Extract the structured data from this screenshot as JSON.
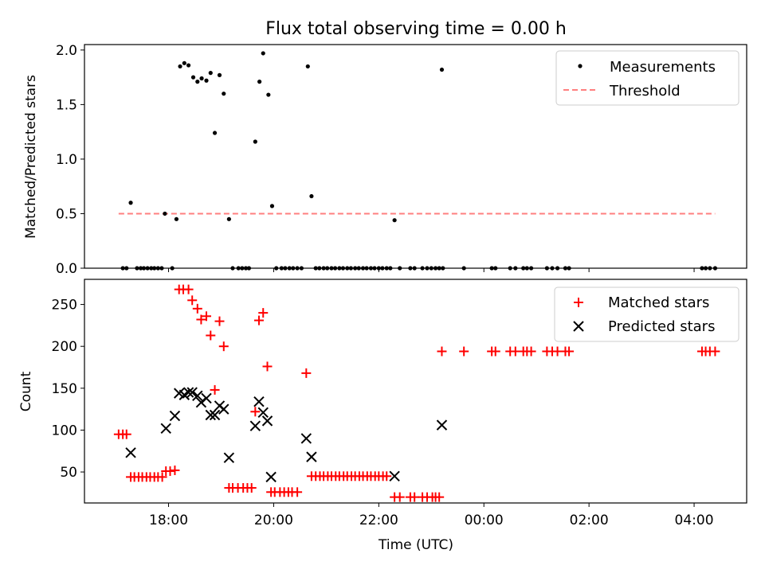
{
  "chart_data": [
    {
      "type": "scatter",
      "title": "Flux total observing time = 0.00 h",
      "xlabel": "",
      "ylabel": "Matched/Predicted stars",
      "xlim": [
        16.4,
        29.0
      ],
      "ylim": [
        0.0,
        2.05
      ],
      "xticks": [
        18,
        20,
        22,
        24,
        26,
        28
      ],
      "yticks": [
        {
          "v": 0.0,
          "label": "0.0"
        },
        {
          "v": 0.5,
          "label": "0.5"
        },
        {
          "v": 1.0,
          "label": "1.0"
        },
        {
          "v": 1.5,
          "label": "1.5"
        },
        {
          "v": 2.0,
          "label": "2.0"
        }
      ],
      "legend_position": "top-right",
      "series": [
        {
          "name": "Measurements",
          "kind": "dot",
          "color": "#000000",
          "points": [
            [
              17.13,
              0
            ],
            [
              17.2,
              0
            ],
            [
              17.28,
              0.6
            ],
            [
              17.4,
              0
            ],
            [
              17.47,
              0
            ],
            [
              17.53,
              0
            ],
            [
              17.6,
              0
            ],
            [
              17.67,
              0
            ],
            [
              17.73,
              0
            ],
            [
              17.8,
              0
            ],
            [
              17.87,
              0
            ],
            [
              17.93,
              0.5
            ],
            [
              18.07,
              0
            ],
            [
              18.15,
              0.45
            ],
            [
              18.22,
              1.85
            ],
            [
              18.3,
              1.88
            ],
            [
              18.38,
              1.86
            ],
            [
              18.47,
              1.75
            ],
            [
              18.55,
              1.71
            ],
            [
              18.63,
              1.74
            ],
            [
              18.72,
              1.72
            ],
            [
              18.8,
              1.79
            ],
            [
              18.88,
              1.24
            ],
            [
              18.97,
              1.77
            ],
            [
              19.05,
              1.6
            ],
            [
              19.15,
              0.45
            ],
            [
              19.22,
              0
            ],
            [
              19.33,
              0
            ],
            [
              19.4,
              0
            ],
            [
              19.47,
              0
            ],
            [
              19.53,
              0
            ],
            [
              19.65,
              1.16
            ],
            [
              19.73,
              1.71
            ],
            [
              19.8,
              1.97
            ],
            [
              19.9,
              1.59
            ],
            [
              19.97,
              0.57
            ],
            [
              20.05,
              0
            ],
            [
              20.15,
              0
            ],
            [
              20.22,
              0
            ],
            [
              20.3,
              0
            ],
            [
              20.37,
              0
            ],
            [
              20.45,
              0
            ],
            [
              20.53,
              0
            ],
            [
              20.65,
              1.85
            ],
            [
              20.72,
              0.66
            ],
            [
              20.8,
              0
            ],
            [
              20.87,
              0
            ],
            [
              20.95,
              0
            ],
            [
              21.02,
              0
            ],
            [
              21.1,
              0
            ],
            [
              21.17,
              0
            ],
            [
              21.25,
              0
            ],
            [
              21.32,
              0
            ],
            [
              21.4,
              0
            ],
            [
              21.47,
              0
            ],
            [
              21.55,
              0
            ],
            [
              21.62,
              0
            ],
            [
              21.7,
              0
            ],
            [
              21.77,
              0
            ],
            [
              21.85,
              0
            ],
            [
              21.92,
              0
            ],
            [
              22.0,
              0
            ],
            [
              22.07,
              0
            ],
            [
              22.15,
              0
            ],
            [
              22.22,
              0
            ],
            [
              22.3,
              0.44
            ],
            [
              22.4,
              0
            ],
            [
              22.6,
              0
            ],
            [
              22.68,
              0
            ],
            [
              22.83,
              0
            ],
            [
              22.92,
              0
            ],
            [
              23.0,
              0
            ],
            [
              23.08,
              0
            ],
            [
              23.15,
              0
            ],
            [
              23.22,
              0
            ],
            [
              23.2,
              1.82
            ],
            [
              23.62,
              0
            ],
            [
              24.15,
              0
            ],
            [
              24.22,
              0
            ],
            [
              24.5,
              0
            ],
            [
              24.6,
              0
            ],
            [
              24.75,
              0
            ],
            [
              24.82,
              0
            ],
            [
              24.9,
              0
            ],
            [
              25.2,
              0
            ],
            [
              25.3,
              0
            ],
            [
              25.4,
              0
            ],
            [
              25.55,
              0
            ],
            [
              25.62,
              0
            ],
            [
              28.15,
              0
            ],
            [
              28.22,
              0
            ],
            [
              28.3,
              0
            ],
            [
              28.4,
              0
            ]
          ]
        },
        {
          "name": "Threshold",
          "kind": "dashed-line",
          "color": "#ff7f7f",
          "points": [
            [
              17.05,
              0.5
            ],
            [
              28.4,
              0.5
            ]
          ]
        }
      ]
    },
    {
      "type": "scatter",
      "title": "",
      "xlabel": "Time (UTC)",
      "ylabel": "Count",
      "xlim": [
        16.4,
        29.0
      ],
      "ylim": [
        13,
        280
      ],
      "xticks": [
        {
          "v": 18,
          "label": "18:00"
        },
        {
          "v": 20,
          "label": "20:00"
        },
        {
          "v": 22,
          "label": "22:00"
        },
        {
          "v": 24,
          "label": "00:00"
        },
        {
          "v": 26,
          "label": "02:00"
        },
        {
          "v": 28,
          "label": "04:00"
        }
      ],
      "yticks": [
        {
          "v": 50,
          "label": "50"
        },
        {
          "v": 100,
          "label": "100"
        },
        {
          "v": 150,
          "label": "150"
        },
        {
          "v": 200,
          "label": "200"
        },
        {
          "v": 250,
          "label": "250"
        }
      ],
      "legend_position": "top-right",
      "series": [
        {
          "name": "Matched stars",
          "kind": "plus",
          "color": "#ff0000",
          "points": [
            [
              17.05,
              95
            ],
            [
              17.13,
              95
            ],
            [
              17.2,
              95
            ],
            [
              17.28,
              44
            ],
            [
              17.35,
              44
            ],
            [
              17.43,
              44
            ],
            [
              17.5,
              44
            ],
            [
              17.58,
              44
            ],
            [
              17.65,
              44
            ],
            [
              17.73,
              44
            ],
            [
              17.8,
              44
            ],
            [
              17.88,
              44
            ],
            [
              17.95,
              51
            ],
            [
              18.03,
              51
            ],
            [
              18.12,
              52
            ],
            [
              18.2,
              268
            ],
            [
              18.28,
              268
            ],
            [
              18.38,
              268
            ],
            [
              18.45,
              255
            ],
            [
              18.55,
              245
            ],
            [
              18.62,
              232
            ],
            [
              18.72,
              236
            ],
            [
              18.8,
              213
            ],
            [
              18.88,
              148
            ],
            [
              18.97,
              230
            ],
            [
              19.05,
              200
            ],
            [
              19.15,
              31
            ],
            [
              19.22,
              31
            ],
            [
              19.32,
              31
            ],
            [
              19.42,
              31
            ],
            [
              19.5,
              31
            ],
            [
              19.58,
              31
            ],
            [
              19.65,
              122
            ],
            [
              19.72,
              231
            ],
            [
              19.8,
              240
            ],
            [
              19.88,
              176
            ],
            [
              19.95,
              26
            ],
            [
              20.02,
              26
            ],
            [
              20.12,
              26
            ],
            [
              20.2,
              26
            ],
            [
              20.28,
              26
            ],
            [
              20.35,
              26
            ],
            [
              20.45,
              26
            ],
            [
              20.62,
              168
            ],
            [
              20.72,
              45
            ],
            [
              20.8,
              45
            ],
            [
              20.88,
              45
            ],
            [
              20.95,
              45
            ],
            [
              21.03,
              45
            ],
            [
              21.1,
              45
            ],
            [
              21.18,
              45
            ],
            [
              21.25,
              45
            ],
            [
              21.33,
              45
            ],
            [
              21.4,
              45
            ],
            [
              21.48,
              45
            ],
            [
              21.55,
              45
            ],
            [
              21.63,
              45
            ],
            [
              21.7,
              45
            ],
            [
              21.78,
              45
            ],
            [
              21.85,
              45
            ],
            [
              21.93,
              45
            ],
            [
              22.0,
              45
            ],
            [
              22.08,
              45
            ],
            [
              22.15,
              45
            ],
            [
              22.3,
              20
            ],
            [
              22.4,
              20
            ],
            [
              22.6,
              20
            ],
            [
              22.68,
              20
            ],
            [
              22.83,
              20
            ],
            [
              22.92,
              20
            ],
            [
              23.02,
              20
            ],
            [
              23.08,
              20
            ],
            [
              23.15,
              20
            ],
            [
              23.2,
              194
            ],
            [
              23.62,
              194
            ],
            [
              24.15,
              194
            ],
            [
              24.22,
              194
            ],
            [
              24.5,
              194
            ],
            [
              24.6,
              194
            ],
            [
              24.75,
              194
            ],
            [
              24.82,
              194
            ],
            [
              24.9,
              194
            ],
            [
              25.2,
              194
            ],
            [
              25.3,
              194
            ],
            [
              25.4,
              194
            ],
            [
              25.55,
              194
            ],
            [
              25.62,
              194
            ],
            [
              28.15,
              194
            ],
            [
              28.22,
              194
            ],
            [
              28.3,
              194
            ],
            [
              28.4,
              194
            ]
          ]
        },
        {
          "name": "Predicted stars",
          "kind": "x",
          "color": "#000000",
          "points": [
            [
              17.28,
              73
            ],
            [
              17.95,
              102
            ],
            [
              18.12,
              117
            ],
            [
              18.2,
              144
            ],
            [
              18.3,
              142
            ],
            [
              18.38,
              145
            ],
            [
              18.45,
              145
            ],
            [
              18.55,
              141
            ],
            [
              18.62,
              133
            ],
            [
              18.72,
              138
            ],
            [
              18.8,
              118
            ],
            [
              18.88,
              118
            ],
            [
              18.97,
              129
            ],
            [
              19.05,
              125
            ],
            [
              19.15,
              67
            ],
            [
              19.65,
              105
            ],
            [
              19.72,
              134
            ],
            [
              19.8,
              121
            ],
            [
              19.88,
              111
            ],
            [
              19.95,
              44
            ],
            [
              20.62,
              90
            ],
            [
              20.72,
              68
            ],
            [
              22.3,
              45
            ],
            [
              23.2,
              106
            ]
          ]
        }
      ]
    }
  ]
}
